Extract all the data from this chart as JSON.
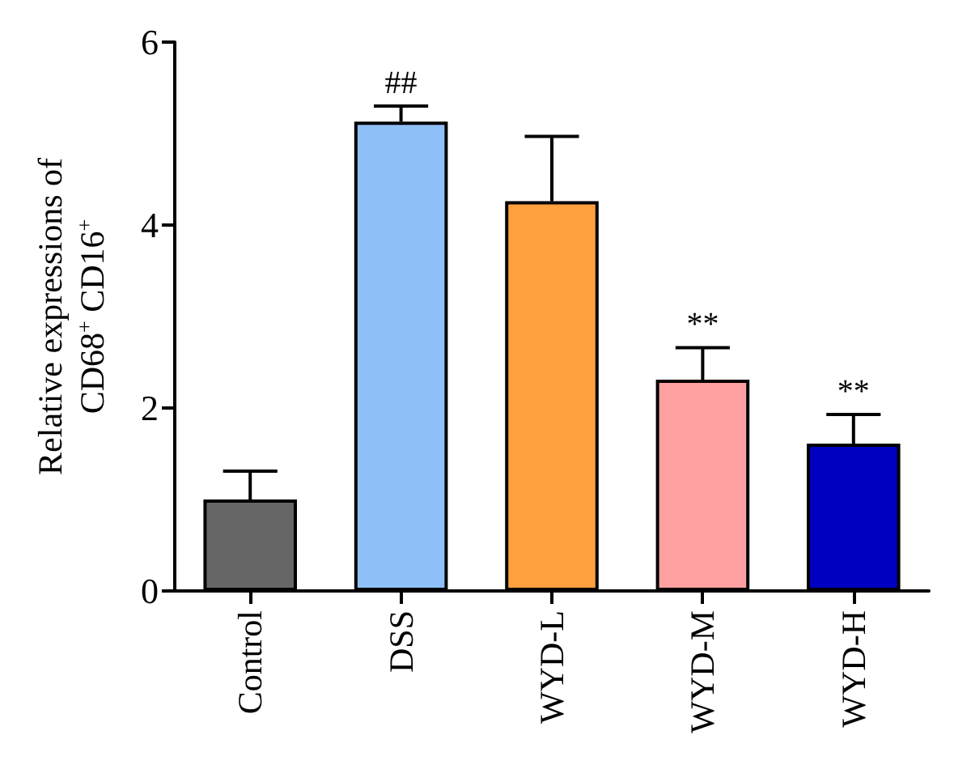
{
  "chart_data": {
    "type": "bar",
    "ylabel": "Relative expressions of\nCD68$^{+}$ CD16$^{+}$",
    "categories": [
      "Control",
      "DSS",
      "WYD-L",
      "WYD-M",
      "WYD-H"
    ],
    "values": [
      1.0,
      5.13,
      4.26,
      2.31,
      1.61
    ],
    "colors": [
      "#666666",
      "#8fbff7",
      "#ffa040",
      "#ffa0a0",
      "#0000c0"
    ],
    "errors": [
      [
        1.0,
        1.31
      ],
      [
        5.13,
        5.3
      ],
      [
        4.26,
        4.97
      ],
      [
        2.31,
        2.66
      ],
      [
        1.61,
        1.93
      ]
    ],
    "annotations": [
      {
        "text": "##",
        "x": "DSS",
        "y": 5.3
      },
      {
        "text": "**",
        "x": "WYD-M",
        "y": 2.66
      },
      {
        "text": "**",
        "x": "WYD-H",
        "y": 1.93
      }
    ],
    "ylim": [
      0,
      6
    ],
    "yticks": [
      0,
      2,
      4,
      6
    ]
  }
}
